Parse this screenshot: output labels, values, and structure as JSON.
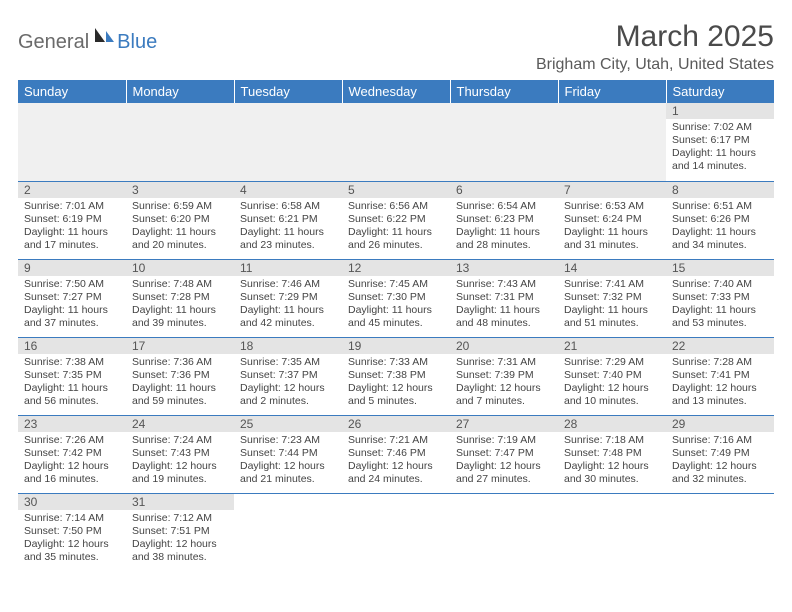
{
  "logo": {
    "general": "General",
    "blue": "Blue"
  },
  "title": "March 2025",
  "location": "Brigham City, Utah, United States",
  "colors": {
    "header_bg": "#3b7bbf",
    "header_text": "#ffffff",
    "daynum_bg": "#e4e4e4",
    "border": "#3b7bbf",
    "body_text": "#444444",
    "page_bg": "#ffffff"
  },
  "layout": {
    "columns": 7,
    "rows": 6,
    "first_day_column": 6
  },
  "weekdays": [
    "Sunday",
    "Monday",
    "Tuesday",
    "Wednesday",
    "Thursday",
    "Friday",
    "Saturday"
  ],
  "days": [
    {
      "n": 1,
      "sunrise": "7:02 AM",
      "sunset": "6:17 PM",
      "daylight": "11 hours and 14 minutes."
    },
    {
      "n": 2,
      "sunrise": "7:01 AM",
      "sunset": "6:19 PM",
      "daylight": "11 hours and 17 minutes."
    },
    {
      "n": 3,
      "sunrise": "6:59 AM",
      "sunset": "6:20 PM",
      "daylight": "11 hours and 20 minutes."
    },
    {
      "n": 4,
      "sunrise": "6:58 AM",
      "sunset": "6:21 PM",
      "daylight": "11 hours and 23 minutes."
    },
    {
      "n": 5,
      "sunrise": "6:56 AM",
      "sunset": "6:22 PM",
      "daylight": "11 hours and 26 minutes."
    },
    {
      "n": 6,
      "sunrise": "6:54 AM",
      "sunset": "6:23 PM",
      "daylight": "11 hours and 28 minutes."
    },
    {
      "n": 7,
      "sunrise": "6:53 AM",
      "sunset": "6:24 PM",
      "daylight": "11 hours and 31 minutes."
    },
    {
      "n": 8,
      "sunrise": "6:51 AM",
      "sunset": "6:26 PM",
      "daylight": "11 hours and 34 minutes."
    },
    {
      "n": 9,
      "sunrise": "7:50 AM",
      "sunset": "7:27 PM",
      "daylight": "11 hours and 37 minutes."
    },
    {
      "n": 10,
      "sunrise": "7:48 AM",
      "sunset": "7:28 PM",
      "daylight": "11 hours and 39 minutes."
    },
    {
      "n": 11,
      "sunrise": "7:46 AM",
      "sunset": "7:29 PM",
      "daylight": "11 hours and 42 minutes."
    },
    {
      "n": 12,
      "sunrise": "7:45 AM",
      "sunset": "7:30 PM",
      "daylight": "11 hours and 45 minutes."
    },
    {
      "n": 13,
      "sunrise": "7:43 AM",
      "sunset": "7:31 PM",
      "daylight": "11 hours and 48 minutes."
    },
    {
      "n": 14,
      "sunrise": "7:41 AM",
      "sunset": "7:32 PM",
      "daylight": "11 hours and 51 minutes."
    },
    {
      "n": 15,
      "sunrise": "7:40 AM",
      "sunset": "7:33 PM",
      "daylight": "11 hours and 53 minutes."
    },
    {
      "n": 16,
      "sunrise": "7:38 AM",
      "sunset": "7:35 PM",
      "daylight": "11 hours and 56 minutes."
    },
    {
      "n": 17,
      "sunrise": "7:36 AM",
      "sunset": "7:36 PM",
      "daylight": "11 hours and 59 minutes."
    },
    {
      "n": 18,
      "sunrise": "7:35 AM",
      "sunset": "7:37 PM",
      "daylight": "12 hours and 2 minutes."
    },
    {
      "n": 19,
      "sunrise": "7:33 AM",
      "sunset": "7:38 PM",
      "daylight": "12 hours and 5 minutes."
    },
    {
      "n": 20,
      "sunrise": "7:31 AM",
      "sunset": "7:39 PM",
      "daylight": "12 hours and 7 minutes."
    },
    {
      "n": 21,
      "sunrise": "7:29 AM",
      "sunset": "7:40 PM",
      "daylight": "12 hours and 10 minutes."
    },
    {
      "n": 22,
      "sunrise": "7:28 AM",
      "sunset": "7:41 PM",
      "daylight": "12 hours and 13 minutes."
    },
    {
      "n": 23,
      "sunrise": "7:26 AM",
      "sunset": "7:42 PM",
      "daylight": "12 hours and 16 minutes."
    },
    {
      "n": 24,
      "sunrise": "7:24 AM",
      "sunset": "7:43 PM",
      "daylight": "12 hours and 19 minutes."
    },
    {
      "n": 25,
      "sunrise": "7:23 AM",
      "sunset": "7:44 PM",
      "daylight": "12 hours and 21 minutes."
    },
    {
      "n": 26,
      "sunrise": "7:21 AM",
      "sunset": "7:46 PM",
      "daylight": "12 hours and 24 minutes."
    },
    {
      "n": 27,
      "sunrise": "7:19 AM",
      "sunset": "7:47 PM",
      "daylight": "12 hours and 27 minutes."
    },
    {
      "n": 28,
      "sunrise": "7:18 AM",
      "sunset": "7:48 PM",
      "daylight": "12 hours and 30 minutes."
    },
    {
      "n": 29,
      "sunrise": "7:16 AM",
      "sunset": "7:49 PM",
      "daylight": "12 hours and 32 minutes."
    },
    {
      "n": 30,
      "sunrise": "7:14 AM",
      "sunset": "7:50 PM",
      "daylight": "12 hours and 35 minutes."
    },
    {
      "n": 31,
      "sunrise": "7:12 AM",
      "sunset": "7:51 PM",
      "daylight": "12 hours and 38 minutes."
    }
  ],
  "labels": {
    "sunrise": "Sunrise:",
    "sunset": "Sunset:",
    "daylight": "Daylight:"
  }
}
